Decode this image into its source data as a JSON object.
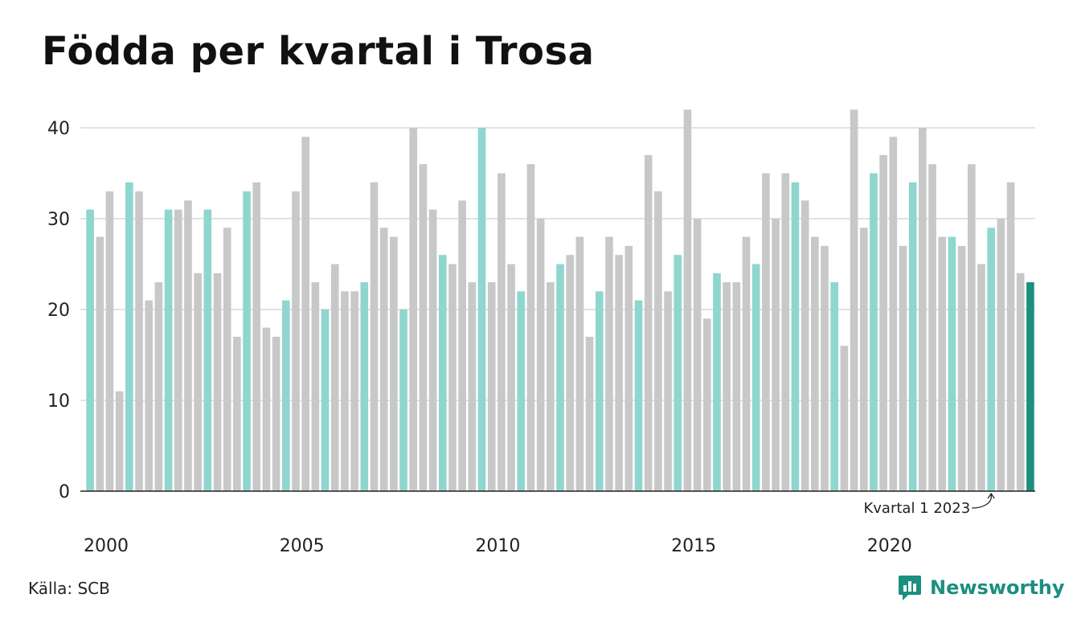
{
  "title": "Födda per kvartal i Trosa",
  "source": "Källa: SCB",
  "brand": "Newsworthy",
  "colors": {
    "q1": "#8fd6cf",
    "other": "#c8c8c8",
    "latest": "#1b8f80",
    "grid": "#e2e2e2",
    "axis": "#222222"
  },
  "chart_data": {
    "type": "bar",
    "x_ticks": [
      "2000",
      "2005",
      "2010",
      "2015",
      "2020"
    ],
    "y_ticks": [
      0,
      10,
      20,
      30,
      40
    ],
    "ylim": [
      0,
      42
    ],
    "grid": true,
    "start_year": 2000,
    "values": [
      31,
      28,
      33,
      11,
      34,
      33,
      21,
      23,
      31,
      31,
      32,
      24,
      31,
      24,
      29,
      17,
      33,
      34,
      18,
      17,
      21,
      33,
      39,
      23,
      20,
      25,
      22,
      22,
      23,
      34,
      29,
      28,
      20,
      40,
      36,
      31,
      26,
      25,
      32,
      23,
      40,
      23,
      35,
      25,
      22,
      36,
      30,
      23,
      25,
      26,
      28,
      17,
      22,
      28,
      26,
      27,
      21,
      37,
      33,
      22,
      26,
      42,
      30,
      19,
      24,
      23,
      23,
      28,
      25,
      35,
      30,
      35,
      34,
      32,
      28,
      27,
      23,
      16,
      42,
      29,
      35,
      37,
      39,
      27,
      34,
      40,
      36,
      28,
      28,
      27,
      36,
      25,
      29,
      30,
      34,
      24,
      23
    ],
    "annotation": "Kvartal 1 2023"
  }
}
